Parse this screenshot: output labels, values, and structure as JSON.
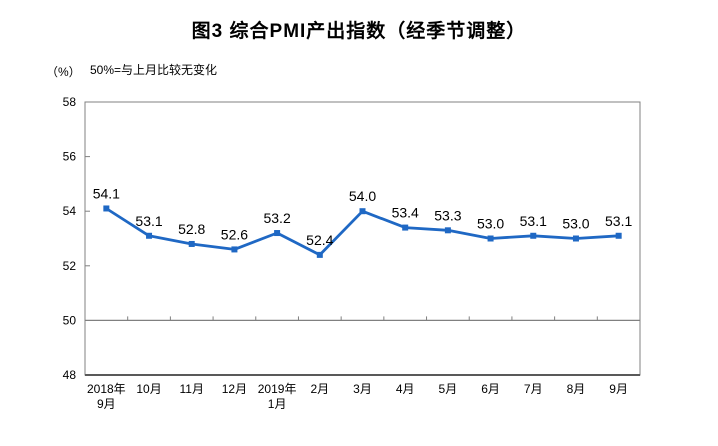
{
  "chart_data": {
    "type": "line",
    "title": "图3 综合PMI产出指数（经季节调整）",
    "unit_label": "（%）",
    "note": "50%=与上月比较无变化",
    "categories": [
      [
        "2018年",
        "9月"
      ],
      [
        "10月"
      ],
      [
        "11月"
      ],
      [
        "12月"
      ],
      [
        "2019年",
        "1月"
      ],
      [
        "2月"
      ],
      [
        "3月"
      ],
      [
        "4月"
      ],
      [
        "5月"
      ],
      [
        "6月"
      ],
      [
        "7月"
      ],
      [
        "8月"
      ],
      [
        "9月"
      ]
    ],
    "values": [
      54.1,
      53.1,
      52.8,
      52.6,
      53.2,
      52.4,
      54.0,
      53.4,
      53.3,
      53.0,
      53.1,
      53.0,
      53.1
    ],
    "ylim": [
      48,
      58
    ],
    "yticks": [
      48,
      50,
      52,
      54,
      56,
      58
    ],
    "reference_line": 50,
    "grid": false,
    "legend": "none",
    "line_color": "#1F68C4",
    "marker": "square",
    "frame_color": "#808080",
    "baseline_color": "#595959",
    "text_color": "#000000"
  }
}
